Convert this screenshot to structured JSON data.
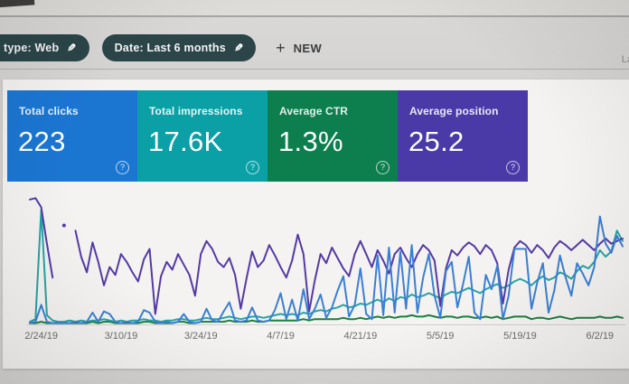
{
  "header": {
    "filter_chips": [
      {
        "label": "type: Web",
        "icon": "edit-pencil-icon"
      },
      {
        "label": "Date: Last 6 months",
        "icon": "edit-pencil-icon"
      }
    ],
    "new_button": {
      "plus_glyph": "+",
      "label": "NEW"
    },
    "clipped_right_text": "La"
  },
  "metric_cards": [
    {
      "label": "Total clicks",
      "value": "223",
      "color": "#1b76d2",
      "help_glyph": "?"
    },
    {
      "label": "Total impressions",
      "value": "17.6K",
      "color": "#0aa0a6",
      "help_glyph": "?"
    },
    {
      "label": "Average CTR",
      "value": "1.3%",
      "color": "#0d7f4e",
      "help_glyph": "?"
    },
    {
      "label": "Average position",
      "value": "25.2",
      "color": "#4a3aa8",
      "help_glyph": "?"
    }
  ],
  "chart_data": {
    "type": "line",
    "title": "",
    "xlabel": "",
    "ylabel": "",
    "grid": false,
    "legend_position": "none",
    "y_axis_visible": false,
    "value_units": "percent of plot height (no y-axis labels visible)",
    "x_tick_labels": [
      "2/24/19",
      "3/10/19",
      "3/24/19",
      "4/7/19",
      "4/21/19",
      "5/5/19",
      "5/19/19",
      "6/2/19"
    ],
    "x_tick_day_indices": [
      2,
      16,
      30,
      44,
      58,
      72,
      86,
      100
    ],
    "axis_line_color": "#d2d0ce",
    "series": [
      {
        "name": "Average CTR",
        "color": "#1b7f41",
        "values": [
          1,
          1,
          2,
          1,
          1,
          1,
          1,
          1,
          1,
          1,
          1,
          2,
          1,
          2,
          2,
          1,
          1,
          1,
          1,
          1,
          2,
          2,
          1,
          1,
          1,
          1,
          2,
          2,
          1,
          1,
          2,
          2,
          2,
          2,
          2,
          3,
          2,
          2,
          2,
          3,
          2,
          2,
          3,
          3,
          3,
          3,
          3,
          3,
          4,
          3,
          4,
          4,
          4,
          4,
          4,
          5,
          4,
          4,
          5,
          4,
          5,
          6,
          5,
          6,
          5,
          6,
          6,
          7,
          6,
          6,
          7,
          6,
          5,
          6,
          6,
          5,
          6,
          6,
          5,
          5,
          6,
          5,
          6,
          4,
          5,
          6,
          6,
          6,
          4,
          5,
          5,
          4,
          5,
          6,
          5,
          4,
          5,
          5,
          5,
          5,
          6,
          5,
          5,
          6,
          5
        ]
      },
      {
        "name": "Total impressions",
        "color": "#27a3a3",
        "values": [
          2,
          4,
          88,
          7,
          3,
          2,
          2,
          3,
          2,
          3,
          2,
          3,
          3,
          4,
          3,
          2,
          3,
          2,
          3,
          3,
          4,
          3,
          3,
          2,
          3,
          3,
          4,
          4,
          3,
          3,
          4,
          5,
          4,
          4,
          5,
          6,
          5,
          4,
          5,
          6,
          6,
          5,
          6,
          7,
          8,
          7,
          8,
          7,
          9,
          8,
          10,
          11,
          10,
          12,
          13,
          15,
          13,
          14,
          16,
          15,
          17,
          19,
          17,
          20,
          18,
          21,
          20,
          23,
          21,
          22,
          24,
          22,
          20,
          23,
          25,
          24,
          26,
          28,
          26,
          24,
          27,
          29,
          31,
          28,
          30,
          33,
          35,
          33,
          30,
          34,
          37,
          34,
          36,
          40,
          38,
          35,
          41,
          45,
          43,
          48,
          57,
          52,
          56,
          72,
          64
        ]
      },
      {
        "name": "Average position",
        "color": "#533aa5",
        "values": [
          96,
          97,
          90,
          62,
          36,
          null,
          76,
          null,
          72,
          52,
          40,
          63,
          48,
          30,
          44,
          38,
          54,
          48,
          40,
          33,
          50,
          58,
          8,
          37,
          48,
          42,
          54,
          46,
          38,
          22,
          54,
          64,
          58,
          48,
          44,
          51,
          38,
          12,
          35,
          56,
          44,
          49,
          61,
          53,
          44,
          36,
          49,
          69,
          54,
          10,
          34,
          54,
          47,
          59,
          51,
          43,
          37,
          54,
          64,
          54,
          44,
          57,
          49,
          39,
          54,
          59,
          51,
          44,
          54,
          61,
          57,
          49,
          14,
          43,
          57,
          53,
          59,
          63,
          60,
          54,
          61,
          57,
          47,
          16,
          42,
          59,
          64,
          61,
          55,
          61,
          57,
          51,
          59,
          64,
          61,
          57,
          61,
          65,
          61,
          57,
          62,
          66,
          62,
          64,
          66
        ]
      },
      {
        "name": "Total clicks",
        "color": "#3a7fd5",
        "values": [
          1,
          2,
          15,
          2,
          1,
          1,
          1,
          1,
          2,
          1,
          2,
          9,
          2,
          10,
          8,
          2,
          1,
          2,
          1,
          2,
          11,
          9,
          2,
          1,
          2,
          1,
          2,
          8,
          2,
          1,
          2,
          12,
          3,
          2,
          10,
          17,
          3,
          2,
          3,
          13,
          3,
          2,
          3,
          11,
          24,
          4,
          19,
          3,
          27,
          4,
          12,
          23,
          5,
          13,
          26,
          37,
          6,
          15,
          43,
          8,
          4,
          53,
          7,
          59,
          9,
          56,
          12,
          61,
          9,
          36,
          54,
          22,
          5,
          41,
          48,
          13,
          31,
          52,
          9,
          4,
          38,
          27,
          45,
          4,
          22,
          58,
          58,
          58,
          12,
          32,
          47,
          9,
          26,
          53,
          36,
          22,
          47,
          39,
          30,
          44,
          83,
          62,
          55,
          68,
          60
        ]
      }
    ]
  }
}
